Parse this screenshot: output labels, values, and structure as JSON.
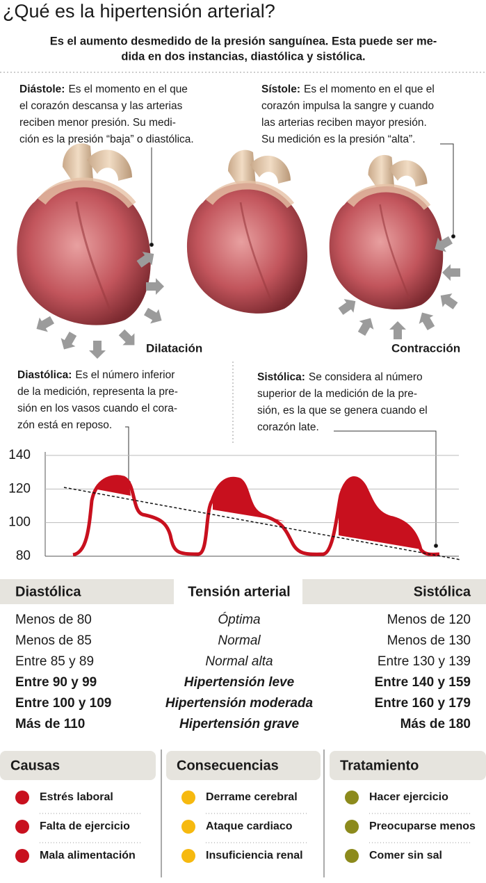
{
  "header": {
    "title": "¿Qué es la hipertensión arterial?",
    "subtitle": [
      "Es el aumento desmedido de la presión sanguínea. Esta puede ser me-",
      "dida en dos instancias, diastólica y sistólica."
    ]
  },
  "phases": [
    {
      "label": "Diástole:",
      "lines": [
        "Es el momento en el que",
        "el corazón descansa y las arterias",
        "reciben menor presión. Su medi-",
        "ción es la presión “baja” o diastólica."
      ],
      "caption": "Dilatación"
    },
    {
      "label": "Sístole:",
      "lines": [
        "Es el momento en el que el",
        "corazón impulsa la sangre y cuando",
        "las arterias reciben mayor presión.",
        "Su medición es la presión “alta”."
      ],
      "caption": "Contracción"
    }
  ],
  "notes": [
    {
      "label": "Diastólica:",
      "lines": [
        "Es el número inferior",
        "de la medición, representa la pre-",
        "sión en los vasos cuando el cora-",
        "zón está en reposo."
      ]
    },
    {
      "label": "Sistólica:",
      "lines": [
        "Se considera al número",
        "superior de la medición de la pre-",
        "sión, es la que se genera cuando el",
        "corazón late."
      ]
    }
  ],
  "chart_data": {
    "type": "line",
    "ylim": [
      80,
      140
    ],
    "yticks": [
      80,
      100,
      120,
      140
    ],
    "grid": true,
    "color": "#c8101e"
  },
  "table": {
    "headers": [
      "Diastólica",
      "Tensión arterial",
      "Sistólica"
    ],
    "rows": [
      [
        "Menos de 80",
        "Óptima",
        "Menos de 120"
      ],
      [
        "Menos de 85",
        "Normal",
        "Menos de 130"
      ],
      [
        "Entre 85 y 89",
        "Normal alta",
        "Entre 130 y 139"
      ],
      [
        "Entre 90 y 99",
        "Hipertensión leve",
        "Entre 140 y 159"
      ],
      [
        "Entre 100 y 109",
        "Hipertensión moderada",
        "Entre 160 y 179"
      ],
      [
        "Más de 110",
        "Hipertensión grave",
        "Más de 180"
      ]
    ]
  },
  "columns": [
    {
      "title": "Causas",
      "color": "#c8101e",
      "items": [
        "Estrés laboral",
        "Falta de ejercicio",
        "Mala alimentación"
      ]
    },
    {
      "title": "Consecuencias",
      "color": "#f6b90f",
      "items": [
        "Derrame cerebral",
        "Ataque cardiaco",
        "Insuficiencia renal"
      ]
    },
    {
      "title": "Tratamiento",
      "color": "#8c8a1c",
      "items": [
        "Hacer ejercicio",
        "Preocuparse menos",
        "Comer sin sal"
      ]
    }
  ]
}
